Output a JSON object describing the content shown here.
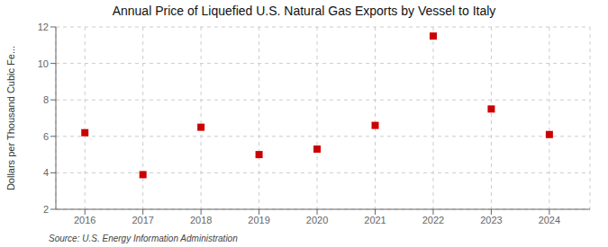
{
  "chart_data": {
    "type": "scatter",
    "title": "Annual Price of Liquefied U.S. Natural Gas Exports by Vessel to Italy",
    "ylabel": "Dollars per Thousand Cubic Fe...",
    "annotations": [
      "Source: U.S. Energy Information Administration"
    ],
    "x": [
      2016,
      2017,
      2018,
      2019,
      2020,
      2021,
      2022,
      2023,
      2024
    ],
    "values": [
      6.2,
      3.9,
      6.5,
      5.0,
      5.3,
      6.6,
      11.5,
      7.5,
      6.1
    ],
    "xlim": [
      2015.5,
      2024.7
    ],
    "xticks": [
      2016,
      2017,
      2018,
      2019,
      2020,
      2021,
      2022,
      2023,
      2024
    ],
    "ylim": [
      2,
      12
    ],
    "yticks": [
      2,
      4,
      6,
      8,
      10,
      12
    ],
    "grid": true,
    "color": "#cc0000",
    "marker": "square"
  }
}
